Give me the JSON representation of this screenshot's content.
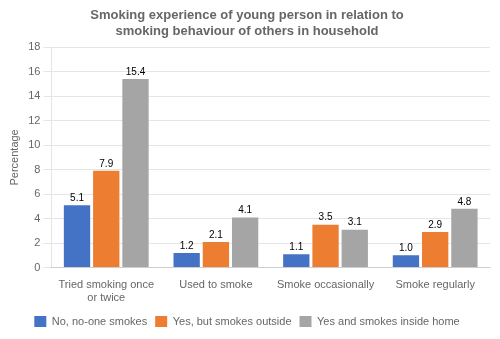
{
  "chart_data": {
    "type": "bar",
    "title": "Smoking experience of young person in relation to\nsmoking behaviour of others in household",
    "categories": [
      "Tried smoking once\nor twice",
      "Used to smoke",
      "Smoke occasionally",
      "Smoke regularly"
    ],
    "series": [
      {
        "name": "No, no-one smokes",
        "color": "#4472C4",
        "values": [
          5.1,
          1.2,
          1.1,
          1.0
        ],
        "value_labels": [
          "5.1",
          "1.2",
          "1.1",
          "1.0"
        ]
      },
      {
        "name": "Yes, but smokes outside",
        "color": "#ED7D31",
        "values": [
          7.9,
          2.1,
          3.5,
          2.9
        ],
        "value_labels": [
          "7.9",
          "2.1",
          "3.5",
          "2.9"
        ]
      },
      {
        "name": "Yes and smokes inside home",
        "color": "#A5A5A5",
        "values": [
          15.4,
          4.1,
          3.1,
          4.8
        ],
        "value_labels": [
          "15.4",
          "4.1",
          "3.1",
          "4.8"
        ]
      }
    ],
    "ylabel": "Percentage",
    "ylim": [
      0,
      18
    ],
    "yticks": [
      0,
      2,
      4,
      6,
      8,
      10,
      12,
      14,
      16,
      18
    ],
    "grid": true,
    "legend": "bottom",
    "data_labels": true
  }
}
